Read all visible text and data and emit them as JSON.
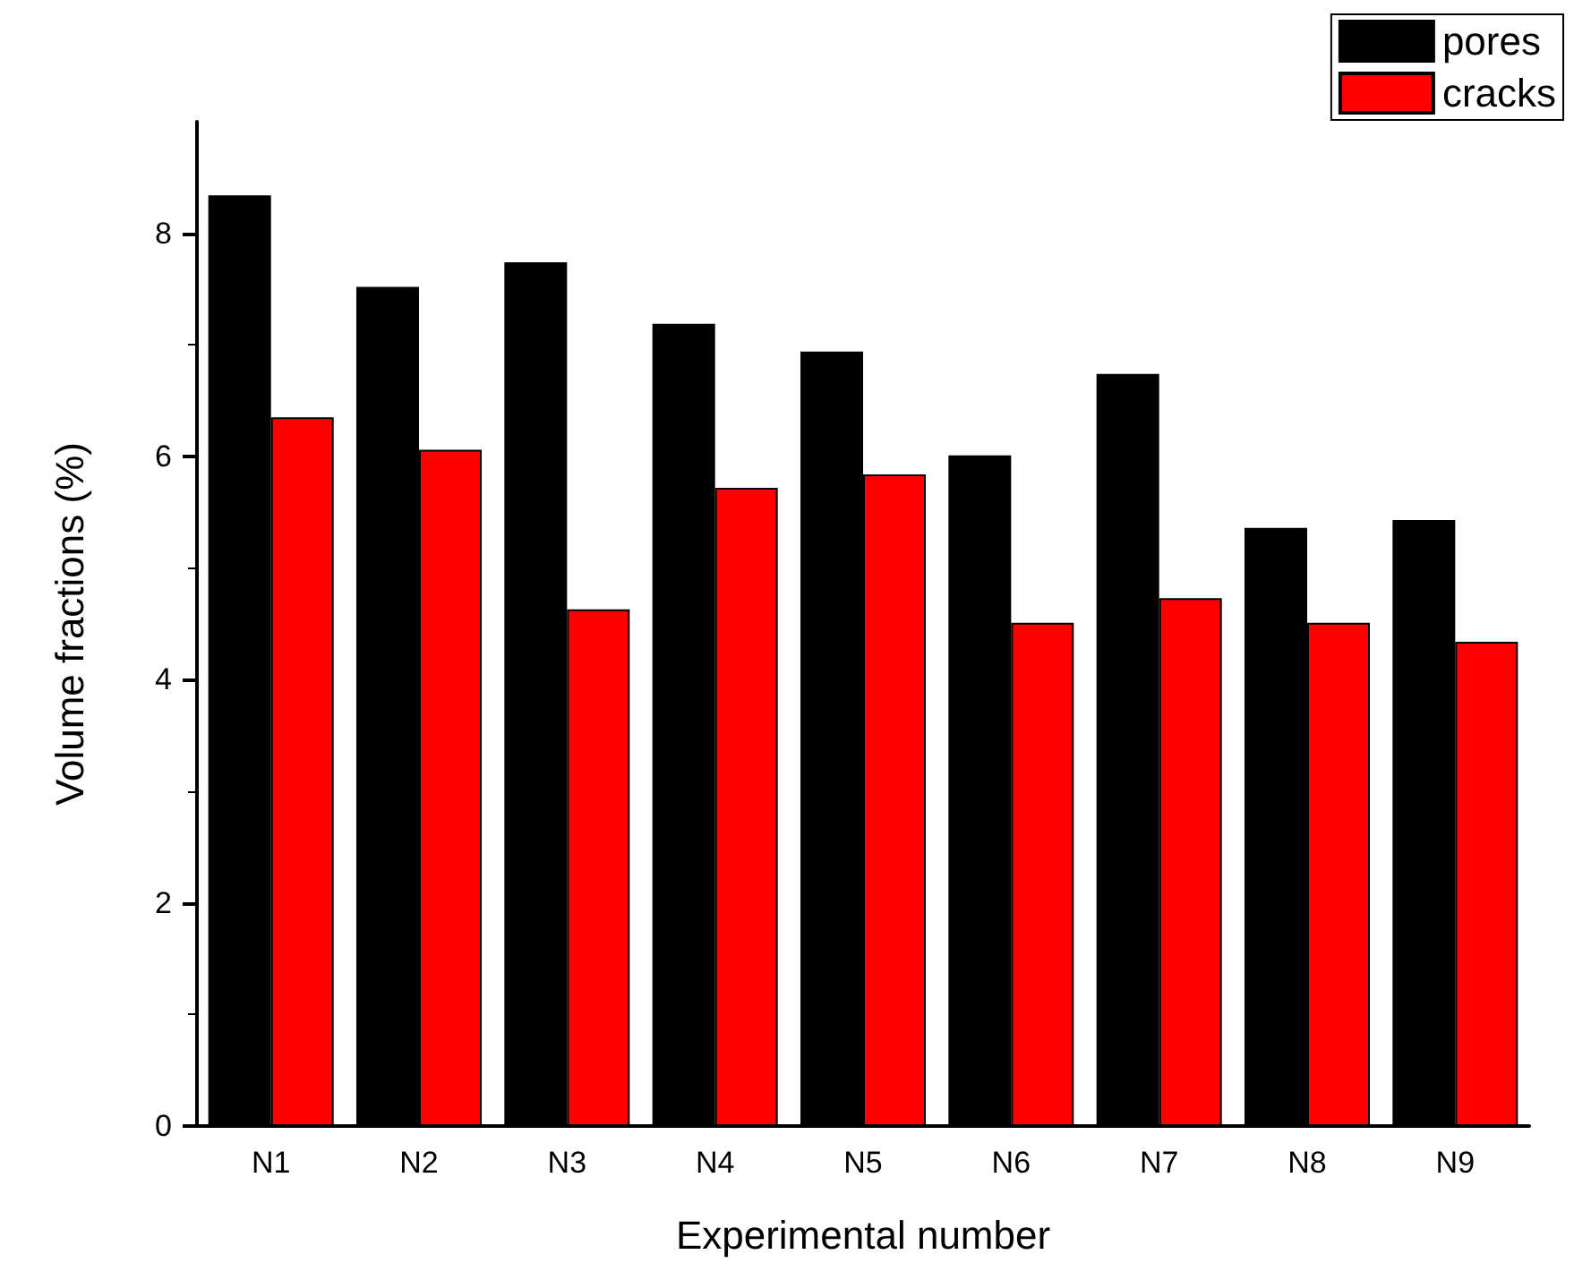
{
  "chart_data": {
    "type": "bar",
    "xlabel": "Experimental number",
    "ylabel": "Volume fractions (%)",
    "categories": [
      "N1",
      "N2",
      "N3",
      "N4",
      "N5",
      "N6",
      "N7",
      "N8",
      "N9"
    ],
    "series": [
      {
        "name": "pores",
        "color": "#000000",
        "values": [
          8.34,
          7.52,
          7.74,
          7.19,
          6.94,
          6.01,
          6.74,
          5.36,
          5.43
        ]
      },
      {
        "name": "cracks",
        "color": "#ff0000",
        "values": [
          6.35,
          6.06,
          4.63,
          5.72,
          5.84,
          4.51,
          4.73,
          4.51,
          4.34
        ]
      }
    ],
    "ylim": [
      0,
      9
    ],
    "yticks": [
      0,
      2,
      4,
      6,
      8
    ],
    "grid": false,
    "legend": "top right"
  }
}
